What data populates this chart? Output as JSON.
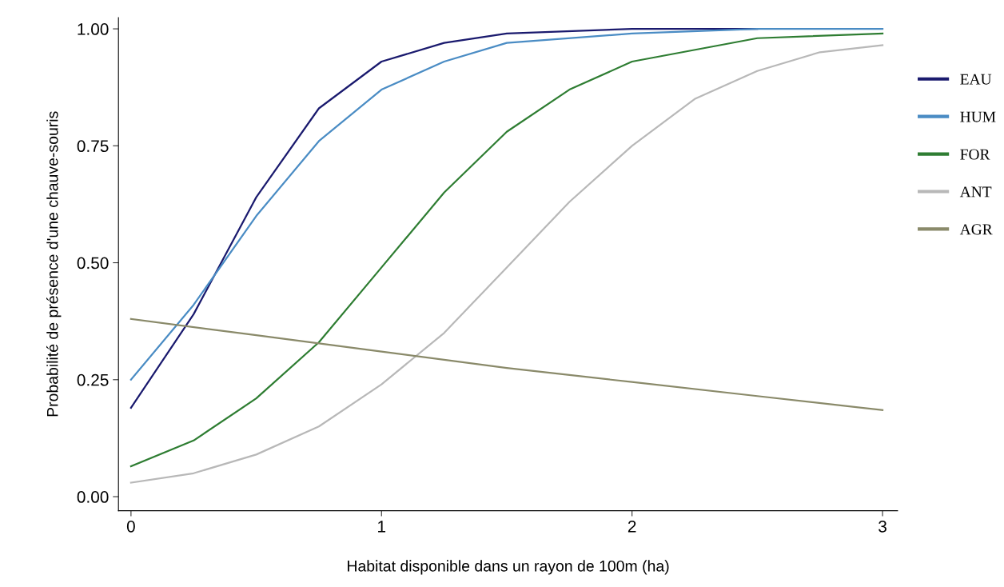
{
  "chart_data": {
    "type": "line",
    "xlabel": "Habitat disponible dans un rayon de 100m (ha)",
    "ylabel": "Probabilité de présence d'une chauve-souris",
    "xlim": [
      -0.05,
      3.06
    ],
    "ylim": [
      -0.03,
      1.024
    ],
    "xticks": [
      0,
      1,
      2,
      3
    ],
    "yticks": [
      {
        "value": 0,
        "label": "0.00"
      },
      {
        "value": 0.25,
        "label": "0.25"
      },
      {
        "value": 0.5,
        "label": "0.50"
      },
      {
        "value": 0.75,
        "label": "0.75"
      },
      {
        "value": 1,
        "label": "1.00"
      }
    ],
    "grid": false,
    "legend": "right",
    "marker": "none",
    "line_style": "solid",
    "series": [
      {
        "name": "EAU",
        "color": "#1a1a6e",
        "x": [
          0,
          0.25,
          0.5,
          0.75,
          1,
          1.25,
          1.5,
          2,
          2.5
        ],
        "values": [
          0.19,
          0.39,
          0.64,
          0.83,
          0.93,
          0.97,
          0.99,
          1.0,
          1.0
        ]
      },
      {
        "name": "HUM",
        "color": "#4a8cc4",
        "x": [
          0,
          0.25,
          0.5,
          0.75,
          1,
          1.25,
          1.5,
          2,
          2.5,
          3
        ],
        "values": [
          0.25,
          0.41,
          0.6,
          0.76,
          0.87,
          0.93,
          0.97,
          0.99,
          1.0,
          1.0
        ]
      },
      {
        "name": "FOR",
        "color": "#2e7d32",
        "x": [
          0,
          0.25,
          0.5,
          0.75,
          1,
          1.25,
          1.5,
          1.75,
          2,
          2.5,
          3
        ],
        "values": [
          0.065,
          0.12,
          0.21,
          0.33,
          0.49,
          0.65,
          0.78,
          0.87,
          0.93,
          0.98,
          0.99
        ]
      },
      {
        "name": "ANT",
        "color": "#b8b8b8",
        "x": [
          0,
          0.25,
          0.5,
          0.75,
          1,
          1.25,
          1.5,
          1.75,
          2,
          2.25,
          2.5,
          2.75,
          3
        ],
        "values": [
          0.03,
          0.05,
          0.09,
          0.15,
          0.24,
          0.35,
          0.49,
          0.63,
          0.75,
          0.85,
          0.91,
          0.95,
          0.965
        ]
      },
      {
        "name": "AGR",
        "color": "#8a8a6a",
        "x": [
          0,
          0.5,
          1,
          1.5,
          2,
          2.5,
          3
        ],
        "values": [
          0.38,
          0.345,
          0.31,
          0.275,
          0.245,
          0.215,
          0.185
        ]
      }
    ]
  }
}
